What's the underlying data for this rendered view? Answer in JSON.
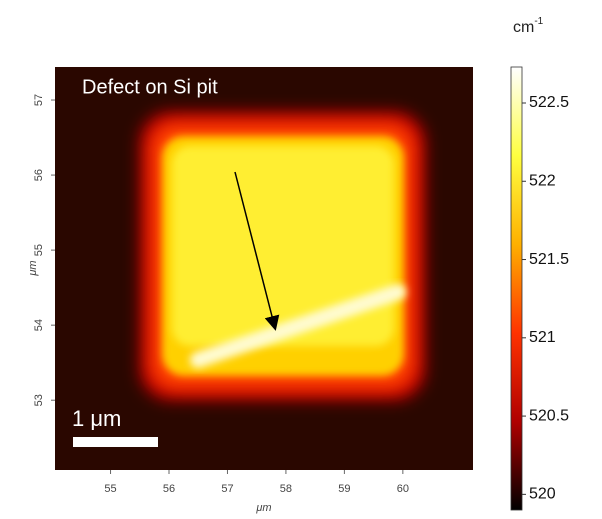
{
  "chart_data": {
    "type": "heatmap",
    "annotation": "Defect on Si pit",
    "scale_bar_label": "1 μm",
    "xlabel": "μm",
    "ylabel": "μm",
    "xlim": [
      54.05,
      61.2
    ],
    "xticks": [
      55,
      56,
      57,
      58,
      59,
      60
    ],
    "ylim": [
      52.07,
      57.44
    ],
    "yticks": [
      53,
      54,
      55,
      56,
      57
    ],
    "colorbar": {
      "unit": "cm",
      "unit_exponent": "-1",
      "lim": [
        519.9,
        522.73
      ],
      "ticks": [
        520,
        520.5,
        521,
        521.5,
        522,
        522.5
      ],
      "colormap": [
        "#000000",
        "#b00000",
        "#ff3300",
        "#ffb000",
        "#ffff40",
        "#ffffff"
      ]
    }
  }
}
